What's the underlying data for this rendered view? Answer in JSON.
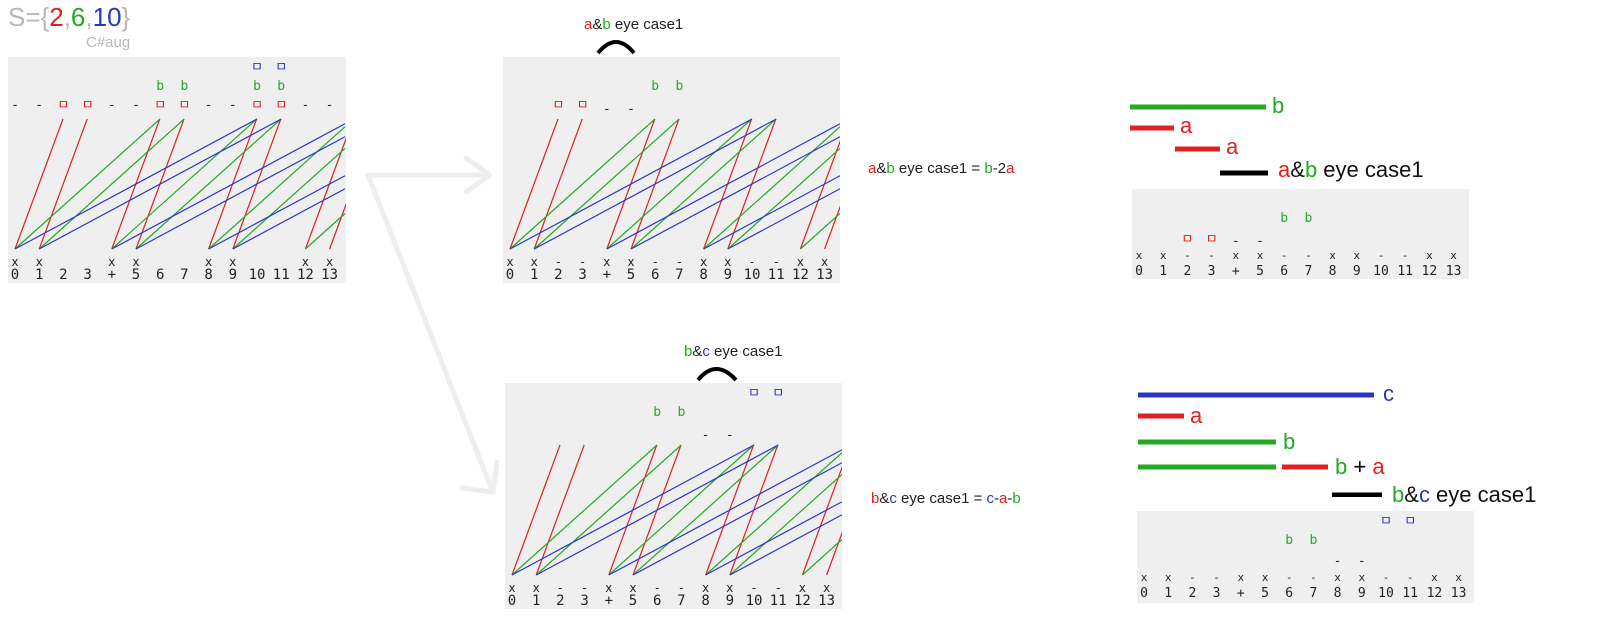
{
  "header": {
    "prefix": "S={",
    "v1": "2",
    "comma1": ",",
    "v2": "6",
    "comma2": ",",
    "v3": "10",
    "suffix": "}",
    "chord": "C#aug"
  },
  "x_ticks": [
    "0",
    "1",
    "2",
    "3",
    "+",
    "5",
    "6",
    "7",
    "8",
    "9",
    "10",
    "11",
    "12",
    "13"
  ],
  "colors": {
    "a": "#e02020",
    "b": "#22aa22",
    "c": "#2a36c8",
    "gray": "#b8b8b8",
    "panel": "#efefef"
  },
  "case_ab": {
    "title_a": "a",
    "title_amp": "&",
    "title_b": "b",
    "title_rest": " eye   case1",
    "formula_a": "a",
    "formula_amp": "&",
    "formula_b": "b",
    "formula_mid": " eye   case1   =  ",
    "formula_t1": "b",
    "formula_dash": "-2",
    "formula_t2": "a",
    "bar_b": "b",
    "bar_a1": "a",
    "bar_a2": "a",
    "case_a": "a",
    "case_amp": "&",
    "case_b": "b",
    "case_rest": " eye case1"
  },
  "case_bc": {
    "title_b": "b",
    "title_amp": "&",
    "title_c": "c",
    "title_rest": "  eye   case1",
    "formula_b": "b",
    "formula_amp": "&",
    "formula_c": "c",
    "formula_mid": " eye   case1   =  ",
    "formula_t1": "c",
    "formula_d1": "-",
    "formula_t2": "a",
    "formula_d2": "-",
    "formula_t3": "b",
    "bar_c": "c",
    "bar_a": "a",
    "bar_b": "b",
    "bar_b2": "b",
    "bar_plus": " + ",
    "bar_a2": "a",
    "case_b": "b",
    "case_amp": "&",
    "case_c": "c",
    "case_rest": " eye case1"
  }
}
